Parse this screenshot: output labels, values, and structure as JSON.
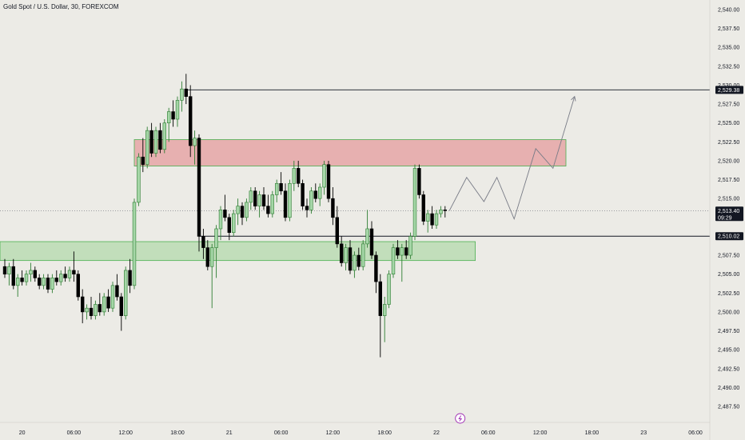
{
  "header": {
    "title": "Gold Spot / U.S. Dollar, 30, FOREXCOM"
  },
  "colors": {
    "background": "#ecebe6",
    "candle_up": "#4caf50",
    "candle_down": "#000000",
    "candle_up_fill": "#a5d6a7",
    "resistance_zone": "#e6a6a6",
    "support_zone": "#b8dbb0",
    "zone_border": "#4caf50",
    "line": "#131722",
    "projection": "#787b86",
    "lightning": "#9c27b0"
  },
  "chart_data": {
    "type": "candlestick",
    "price_axis": {
      "ticks": [
        "2,540.00",
        "2,537.50",
        "2,535.00",
        "2,532.50",
        "2,530.00",
        "2,527.50",
        "2,525.00",
        "2,522.50",
        "2,520.00",
        "2,517.50",
        "2,515.00",
        "2,512.50",
        "2,510.00",
        "2,507.50",
        "2,505.00",
        "2,502.50",
        "2,500.00",
        "2,497.50",
        "2,495.00",
        "2,492.50",
        "2,490.00",
        "2,487.50"
      ],
      "range": [
        2486.5,
        2541.0
      ]
    },
    "time_axis": {
      "ticks": [
        {
          "label": "20",
          "index": 4
        },
        {
          "label": "06:00",
          "index": 16
        },
        {
          "label": "12:00",
          "index": 28
        },
        {
          "label": "18:00",
          "index": 40
        },
        {
          "label": "21",
          "index": 52
        },
        {
          "label": "06:00",
          "index": 64
        },
        {
          "label": "12:00",
          "index": 76
        },
        {
          "label": "18:00",
          "index": 88
        },
        {
          "label": "22",
          "index": 100
        },
        {
          "label": "06:00",
          "index": 112
        },
        {
          "label": "12:00",
          "index": 124
        },
        {
          "label": "18:00",
          "index": 136
        },
        {
          "label": "23",
          "index": 148
        },
        {
          "label": "06:00",
          "index": 160
        }
      ]
    },
    "candles": [
      [
        2506.0,
        2507.0,
        2504.5,
        2505.0
      ],
      [
        2505.0,
        2506.5,
        2503.5,
        2506.0
      ],
      [
        2506.0,
        2507.0,
        2503.0,
        2503.5
      ],
      [
        2503.5,
        2505.0,
        2502.0,
        2504.5
      ],
      [
        2504.5,
        2505.5,
        2503.5,
        2504.0
      ],
      [
        2504.0,
        2505.5,
        2503.5,
        2505.0
      ],
      [
        2505.0,
        2506.5,
        2504.0,
        2505.5
      ],
      [
        2505.5,
        2506.0,
        2504.0,
        2504.5
      ],
      [
        2504.5,
        2505.0,
        2503.0,
        2503.5
      ],
      [
        2503.5,
        2505.0,
        2503.0,
        2504.5
      ],
      [
        2504.5,
        2505.0,
        2502.5,
        2503.0
      ],
      [
        2503.0,
        2505.0,
        2502.5,
        2504.5
      ],
      [
        2504.5,
        2505.5,
        2503.5,
        2504.0
      ],
      [
        2504.0,
        2505.5,
        2503.5,
        2505.0
      ],
      [
        2505.0,
        2506.0,
        2504.0,
        2504.5
      ],
      [
        2504.5,
        2506.0,
        2504.0,
        2505.5
      ],
      [
        2505.5,
        2508.0,
        2504.0,
        2505.0
      ],
      [
        2505.0,
        2505.5,
        2501.5,
        2502.0
      ],
      [
        2502.0,
        2503.0,
        2498.5,
        2500.0
      ],
      [
        2500.0,
        2501.0,
        2499.0,
        2500.5
      ],
      [
        2500.5,
        2502.0,
        2499.0,
        2499.5
      ],
      [
        2499.5,
        2501.5,
        2499.0,
        2501.0
      ],
      [
        2501.0,
        2502.5,
        2499.5,
        2500.0
      ],
      [
        2500.0,
        2502.5,
        2499.5,
        2502.0
      ],
      [
        2502.0,
        2503.0,
        2500.0,
        2500.5
      ],
      [
        2500.5,
        2504.0,
        2500.0,
        2503.5
      ],
      [
        2503.5,
        2505.0,
        2501.5,
        2502.0
      ],
      [
        2502.0,
        2502.5,
        2497.5,
        2499.5
      ],
      [
        2499.5,
        2506.0,
        2499.0,
        2505.5
      ],
      [
        2505.5,
        2507.0,
        2502.5,
        2503.5
      ],
      [
        2503.5,
        2515.0,
        2503.0,
        2514.5
      ],
      [
        2514.5,
        2521.0,
        2514.0,
        2520.5
      ],
      [
        2520.5,
        2523.0,
        2518.5,
        2519.5
      ],
      [
        2519.5,
        2524.5,
        2519.0,
        2524.0
      ],
      [
        2524.0,
        2525.0,
        2520.5,
        2521.0
      ],
      [
        2521.0,
        2524.5,
        2520.5,
        2524.0
      ],
      [
        2524.0,
        2525.0,
        2521.0,
        2521.5
      ],
      [
        2521.5,
        2525.5,
        2521.0,
        2525.0
      ],
      [
        2525.0,
        2527.0,
        2522.5,
        2526.5
      ],
      [
        2526.5,
        2528.0,
        2524.5,
        2525.5
      ],
      [
        2525.5,
        2528.5,
        2524.5,
        2528.0
      ],
      [
        2528.0,
        2530.5,
        2526.5,
        2529.5
      ],
      [
        2529.5,
        2531.5,
        2527.5,
        2528.5
      ],
      [
        2528.5,
        2530.0,
        2520.5,
        2522.0
      ],
      [
        2522.0,
        2524.0,
        2519.5,
        2523.0
      ],
      [
        2523.0,
        2523.5,
        2508.0,
        2510.0
      ],
      [
        2510.0,
        2511.0,
        2507.0,
        2508.5
      ],
      [
        2508.5,
        2509.5,
        2505.5,
        2506.0
      ],
      [
        2506.0,
        2509.0,
        2500.5,
        2508.5
      ],
      [
        2508.5,
        2511.5,
        2504.5,
        2511.0
      ],
      [
        2511.0,
        2514.0,
        2509.5,
        2513.5
      ],
      [
        2513.5,
        2515.5,
        2512.0,
        2512.5
      ],
      [
        2512.5,
        2513.0,
        2509.5,
        2510.5
      ],
      [
        2510.5,
        2513.5,
        2510.0,
        2513.0
      ],
      [
        2513.0,
        2515.0,
        2511.5,
        2514.0
      ],
      [
        2514.0,
        2514.5,
        2511.5,
        2512.5
      ],
      [
        2512.5,
        2515.0,
        2512.0,
        2514.5
      ],
      [
        2514.5,
        2516.5,
        2513.5,
        2516.0
      ],
      [
        2516.0,
        2516.5,
        2513.5,
        2514.0
      ],
      [
        2514.0,
        2516.0,
        2512.5,
        2515.5
      ],
      [
        2515.5,
        2516.5,
        2513.5,
        2514.0
      ],
      [
        2514.0,
        2515.5,
        2512.5,
        2513.0
      ],
      [
        2513.0,
        2516.0,
        2512.5,
        2515.5
      ],
      [
        2515.5,
        2517.5,
        2514.5,
        2517.0
      ],
      [
        2517.0,
        2518.5,
        2515.5,
        2516.0
      ],
      [
        2516.0,
        2517.0,
        2512.0,
        2512.5
      ],
      [
        2512.5,
        2517.5,
        2512.0,
        2517.0
      ],
      [
        2517.0,
        2520.0,
        2516.0,
        2519.0
      ],
      [
        2519.0,
        2520.0,
        2516.5,
        2517.0
      ],
      [
        2517.0,
        2517.5,
        2513.5,
        2514.0
      ],
      [
        2514.0,
        2515.0,
        2512.5,
        2513.5
      ],
      [
        2513.5,
        2516.5,
        2513.0,
        2516.0
      ],
      [
        2516.0,
        2517.0,
        2514.5,
        2515.0
      ],
      [
        2515.0,
        2517.0,
        2514.0,
        2516.5
      ],
      [
        2516.5,
        2520.0,
        2515.5,
        2519.5
      ],
      [
        2519.5,
        2520.0,
        2514.5,
        2515.0
      ],
      [
        2515.0,
        2516.5,
        2511.5,
        2512.5
      ],
      [
        2512.5,
        2514.0,
        2508.5,
        2509.0
      ],
      [
        2509.0,
        2510.0,
        2506.0,
        2506.5
      ],
      [
        2506.5,
        2509.0,
        2505.5,
        2508.5
      ],
      [
        2508.5,
        2509.5,
        2505.0,
        2505.5
      ],
      [
        2505.5,
        2508.0,
        2504.5,
        2507.5
      ],
      [
        2507.5,
        2508.5,
        2505.5,
        2506.0
      ],
      [
        2506.0,
        2509.5,
        2505.5,
        2509.0
      ],
      [
        2509.0,
        2513.5,
        2508.5,
        2511.0
      ],
      [
        2511.0,
        2512.0,
        2507.0,
        2507.5
      ],
      [
        2507.5,
        2508.0,
        2502.5,
        2504.0
      ],
      [
        2504.0,
        2505.0,
        2494.0,
        2499.5
      ],
      [
        2499.5,
        2502.0,
        2496.0,
        2501.0
      ],
      [
        2501.0,
        2505.5,
        2500.5,
        2505.0
      ],
      [
        2505.0,
        2509.0,
        2504.5,
        2508.5
      ],
      [
        2508.5,
        2509.5,
        2507.0,
        2507.5
      ],
      [
        2507.5,
        2509.0,
        2504.0,
        2508.5
      ],
      [
        2508.5,
        2509.5,
        2507.0,
        2507.5
      ],
      [
        2507.5,
        2510.5,
        2507.0,
        2510.0
      ],
      [
        2510.0,
        2519.5,
        2509.5,
        2519.0
      ],
      [
        2519.0,
        2519.5,
        2515.0,
        2515.5
      ],
      [
        2515.5,
        2516.0,
        2511.5,
        2512.0
      ],
      [
        2512.0,
        2513.5,
        2510.5,
        2513.0
      ],
      [
        2513.0,
        2514.0,
        2511.0,
        2511.5
      ],
      [
        2511.5,
        2513.5,
        2511.0,
        2513.0
      ],
      [
        2513.0,
        2514.0,
        2512.5,
        2513.5
      ],
      [
        2513.5,
        2514.0,
        2512.5,
        2513.4
      ]
    ],
    "zones": [
      {
        "name": "resistance",
        "from_index": 30,
        "to_index": 130,
        "top": 2522.8,
        "bottom": 2519.3
      },
      {
        "name": "support",
        "from_index": -2,
        "to_index": 109,
        "top": 2509.3,
        "bottom": 2506.8
      }
    ],
    "horizontal_lines": [
      {
        "price": 2529.38,
        "from_index": 42,
        "label": "2,529.38"
      },
      {
        "price": 2510.02,
        "from_index": 45,
        "label": "2,510.02"
      }
    ],
    "last_price": {
      "price": 2513.4,
      "label": "2,513.40",
      "countdown": "09:29"
    },
    "projection_path": [
      [
        103,
        2513.4
      ],
      [
        107,
        2517.8
      ],
      [
        111,
        2514.6
      ],
      [
        114,
        2517.8
      ],
      [
        118,
        2512.3
      ],
      [
        123,
        2521.6
      ],
      [
        127,
        2519.0
      ],
      [
        132,
        2528.5
      ]
    ],
    "projection_arrowhead_at_end": true
  },
  "footer": {
    "event_marker": "lightning-icon"
  }
}
